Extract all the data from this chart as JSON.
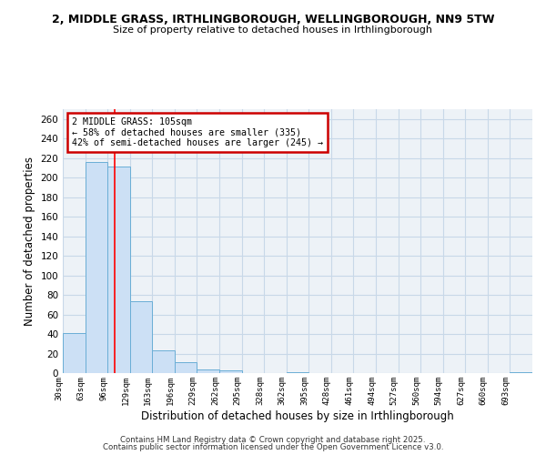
{
  "title": "2, MIDDLE GRASS, IRTHLINGBOROUGH, WELLINGBOROUGH, NN9 5TW",
  "subtitle": "Size of property relative to detached houses in Irthlingborough",
  "xlabel": "Distribution of detached houses by size in Irthlingborough",
  "ylabel": "Number of detached properties",
  "bar_color": "#cce0f5",
  "bar_edge_color": "#6aaed6",
  "grid_color": "#c8d8e8",
  "bin_labels": [
    "30sqm",
    "63sqm",
    "96sqm",
    "129sqm",
    "163sqm",
    "196sqm",
    "229sqm",
    "262sqm",
    "295sqm",
    "328sqm",
    "362sqm",
    "395sqm",
    "428sqm",
    "461sqm",
    "494sqm",
    "527sqm",
    "560sqm",
    "594sqm",
    "627sqm",
    "660sqm",
    "693sqm"
  ],
  "bar_values": [
    41,
    216,
    211,
    74,
    23,
    11,
    4,
    3,
    0,
    0,
    1,
    0,
    0,
    0,
    0,
    0,
    0,
    0,
    0,
    0,
    1
  ],
  "ylim": [
    0,
    270
  ],
  "yticks": [
    0,
    20,
    40,
    60,
    80,
    100,
    120,
    140,
    160,
    180,
    200,
    220,
    240,
    260
  ],
  "vline_position": 2.3,
  "ann_title": "2 MIDDLE GRASS: 105sqm",
  "ann_line1": "← 58% of detached houses are smaller (335)",
  "ann_line2": "42% of semi-detached houses are larger (245) →",
  "footer1": "Contains HM Land Registry data © Crown copyright and database right 2025.",
  "footer2": "Contains public sector information licensed under the Open Government Licence v3.0.",
  "bg_color": "#f0f4f8",
  "plot_bg_color": "#edf2f7"
}
